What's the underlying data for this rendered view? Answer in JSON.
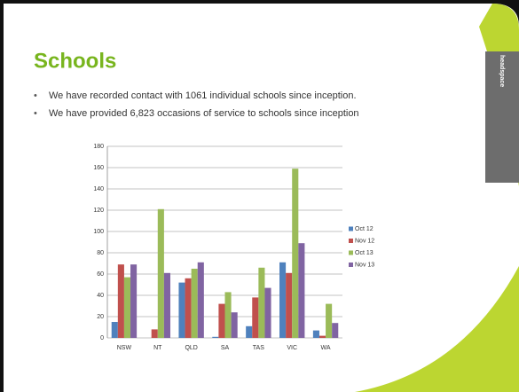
{
  "slide_title": "Schools",
  "bullets": [
    "We have recorded contact with 1061 individual schools since inception.",
    "We have provided 6,823 occasions of service to schools since inception"
  ],
  "tab_label": "headspace",
  "chart_data": {
    "type": "bar",
    "categories": [
      "NSW",
      "NT",
      "QLD",
      "SA",
      "TAS",
      "VIC",
      "WA"
    ],
    "series": [
      {
        "name": "Oct 12",
        "color": "#4f81bd",
        "values": [
          15,
          0,
          52,
          1,
          11,
          71,
          7
        ]
      },
      {
        "name": "Nov 12",
        "color": "#c0504d",
        "values": [
          69,
          8,
          56,
          32,
          38,
          61,
          2
        ]
      },
      {
        "name": "Oct 13",
        "color": "#9bbb59",
        "values": [
          57,
          121,
          65,
          43,
          66,
          159,
          32
        ]
      },
      {
        "name": "Nov 13",
        "color": "#8064a2",
        "values": [
          69,
          61,
          71,
          24,
          47,
          89,
          14
        ]
      }
    ],
    "ylim": [
      0,
      180
    ],
    "yticks": [
      0,
      20,
      40,
      60,
      80,
      100,
      120,
      140,
      160,
      180
    ],
    "grid": true,
    "legend": "right"
  }
}
